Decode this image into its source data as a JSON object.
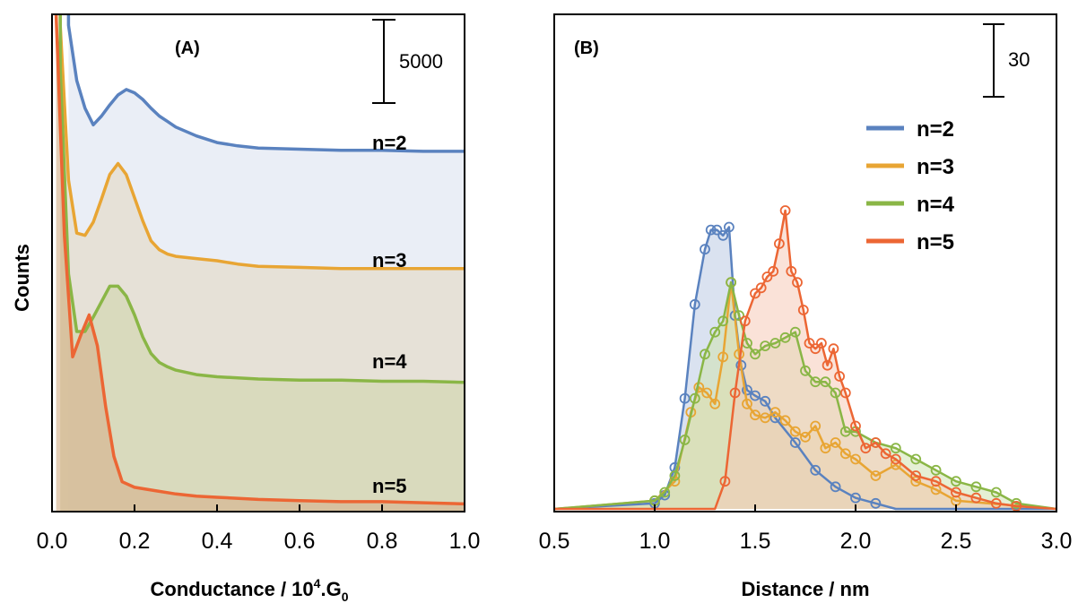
{
  "chart_data": [
    {
      "type": "area",
      "panel_label": "(A)",
      "xlabel_main": "Conductance / 10",
      "xlabel_sup": "4",
      "xlabel_mid": ".G",
      "xlabel_sub": "0",
      "ylabel": "Counts",
      "xlim": [
        0.0,
        1.0
      ],
      "xticks": [
        "0.0",
        "0.2",
        "0.4",
        "0.6",
        "0.8",
        "1.0"
      ],
      "xtick_values": [
        0.0,
        0.2,
        0.4,
        0.6,
        0.8,
        1.0
      ],
      "y_ticks_shown": false,
      "scale_bar_label": "5000",
      "scale_bar_value": 5000,
      "ylim": [
        0,
        45000
      ],
      "series": [
        {
          "name": "n=2",
          "color": "#5a82bf",
          "fill": "#dfe5f1",
          "offset": 30000,
          "x": [
            0.04,
            0.06,
            0.08,
            0.1,
            0.12,
            0.14,
            0.16,
            0.18,
            0.2,
            0.22,
            0.24,
            0.26,
            0.28,
            0.3,
            0.35,
            0.4,
            0.45,
            0.5,
            0.6,
            0.7,
            0.8,
            0.9,
            1.0
          ],
          "values": [
            14000,
            9000,
            6500,
            5000,
            5800,
            6800,
            7700,
            8200,
            7900,
            7300,
            6500,
            5800,
            5300,
            4800,
            4000,
            3400,
            3100,
            2900,
            2800,
            2700,
            2700,
            2600,
            2600
          ]
        },
        {
          "name": "n=3",
          "color": "#e8a534",
          "fill": "#e3dac6",
          "offset": 20000,
          "x": [
            0.02,
            0.04,
            0.06,
            0.08,
            0.1,
            0.12,
            0.14,
            0.16,
            0.18,
            0.2,
            0.22,
            0.24,
            0.26,
            0.28,
            0.3,
            0.35,
            0.4,
            0.45,
            0.5,
            0.6,
            0.7,
            0.8,
            0.9,
            1.0
          ],
          "values": [
            24000,
            10000,
            5200,
            5000,
            6200,
            8300,
            10500,
            11500,
            10500,
            8400,
            6300,
            4500,
            3700,
            3300,
            3100,
            2900,
            2700,
            2400,
            2200,
            2100,
            2000,
            2000,
            2000,
            2000
          ]
        },
        {
          "name": "n=4",
          "color": "#8ab646",
          "fill": "#d3d6af",
          "offset": 10000,
          "x": [
            0.02,
            0.04,
            0.06,
            0.08,
            0.1,
            0.12,
            0.14,
            0.16,
            0.18,
            0.2,
            0.22,
            0.24,
            0.26,
            0.28,
            0.3,
            0.35,
            0.4,
            0.45,
            0.5,
            0.6,
            0.7,
            0.8,
            0.9,
            1.0
          ],
          "values": [
            30000,
            11500,
            6300,
            6300,
            7600,
            9000,
            10400,
            10400,
            9500,
            7800,
            5800,
            4300,
            3500,
            3100,
            2800,
            2400,
            2200,
            2100,
            2000,
            1900,
            1900,
            1800,
            1800,
            1700
          ]
        },
        {
          "name": "n=5",
          "color": "#ec6634",
          "fill": "#d5b38f",
          "offset": 0,
          "x": [
            0.01,
            0.03,
            0.05,
            0.07,
            0.09,
            0.11,
            0.13,
            0.15,
            0.17,
            0.2,
            0.25,
            0.3,
            0.35,
            0.4,
            0.5,
            0.6,
            0.7,
            0.8,
            0.9,
            1.0
          ],
          "values": [
            45000,
            25000,
            14000,
            16000,
            17800,
            15000,
            9500,
            5000,
            2700,
            2200,
            1900,
            1600,
            1400,
            1300,
            1100,
            1000,
            900,
            900,
            800,
            700
          ]
        }
      ]
    },
    {
      "type": "line",
      "panel_label": "(B)",
      "xlabel": "Distance / nm",
      "xlim": [
        0.5,
        3.0
      ],
      "xticks": [
        "0.5",
        "1.0",
        "1.5",
        "2.0",
        "2.5",
        "3.0"
      ],
      "xtick_values": [
        0.5,
        1.0,
        1.5,
        2.0,
        2.5,
        3.0
      ],
      "y_ticks_shown": false,
      "scale_bar_label": "30",
      "scale_bar_value": 30,
      "ylim": [
        0,
        180
      ],
      "markers": "open-circles",
      "series": [
        {
          "name": "n=2",
          "color": "#5a82bf",
          "fill": "#bccae4",
          "x": [
            0.5,
            1.0,
            1.05,
            1.1,
            1.15,
            1.2,
            1.25,
            1.28,
            1.31,
            1.34,
            1.37,
            1.4,
            1.43,
            1.46,
            1.5,
            1.55,
            1.6,
            1.7,
            1.8,
            1.9,
            2.0,
            2.1,
            2.2,
            3.0
          ],
          "values": [
            0,
            2,
            5,
            15,
            40,
            74,
            94,
            101,
            101,
            99,
            102,
            70,
            52,
            43,
            41,
            39,
            33,
            24,
            14,
            8,
            4,
            2,
            0,
            0
          ]
        },
        {
          "name": "n=3",
          "color": "#e8a534",
          "fill": "#f0d8a5",
          "x": [
            0.5,
            1.0,
            1.1,
            1.18,
            1.22,
            1.26,
            1.3,
            1.34,
            1.38,
            1.42,
            1.46,
            1.5,
            1.55,
            1.6,
            1.65,
            1.7,
            1.75,
            1.8,
            1.85,
            1.9,
            1.95,
            2.0,
            2.1,
            2.2,
            2.3,
            2.4,
            2.5,
            3.0
          ],
          "values": [
            0,
            3,
            10,
            35,
            44,
            42,
            38,
            55,
            82,
            56,
            38,
            34,
            33,
            35,
            32,
            28,
            26,
            30,
            22,
            24,
            20,
            18,
            12,
            16,
            10,
            7,
            3,
            0
          ]
        },
        {
          "name": "n=4",
          "color": "#8ab646",
          "fill": "#d0e2b0",
          "x": [
            0.5,
            1.0,
            1.05,
            1.1,
            1.15,
            1.2,
            1.25,
            1.3,
            1.34,
            1.38,
            1.42,
            1.46,
            1.5,
            1.55,
            1.6,
            1.65,
            1.7,
            1.75,
            1.8,
            1.85,
            1.9,
            1.95,
            2.0,
            2.1,
            2.2,
            2.3,
            2.4,
            2.5,
            2.6,
            2.7,
            2.8,
            3.0
          ],
          "values": [
            0,
            3,
            6,
            12,
            25,
            40,
            56,
            64,
            68,
            82,
            70,
            60,
            56,
            59,
            60,
            62,
            64,
            50,
            46,
            46,
            42,
            28,
            28,
            24,
            22,
            18,
            14,
            10,
            8,
            6,
            2,
            0
          ]
        },
        {
          "name": "n=5",
          "color": "#ec6634",
          "fill": "#f6cbb8",
          "x": [
            0.5,
            1.3,
            1.35,
            1.4,
            1.45,
            1.5,
            1.53,
            1.56,
            1.59,
            1.62,
            1.65,
            1.68,
            1.71,
            1.74,
            1.77,
            1.8,
            1.83,
            1.86,
            1.89,
            1.92,
            1.95,
            2.0,
            2.05,
            2.1,
            2.15,
            2.2,
            2.3,
            2.4,
            2.5,
            2.6,
            2.7,
            2.8,
            3.0
          ],
          "values": [
            0,
            0,
            10,
            42,
            68,
            78,
            80,
            84,
            86,
            96,
            108,
            86,
            82,
            72,
            60,
            58,
            60,
            52,
            58,
            48,
            42,
            30,
            22,
            24,
            20,
            18,
            12,
            10,
            6,
            4,
            2,
            1,
            0
          ]
        }
      ]
    }
  ]
}
